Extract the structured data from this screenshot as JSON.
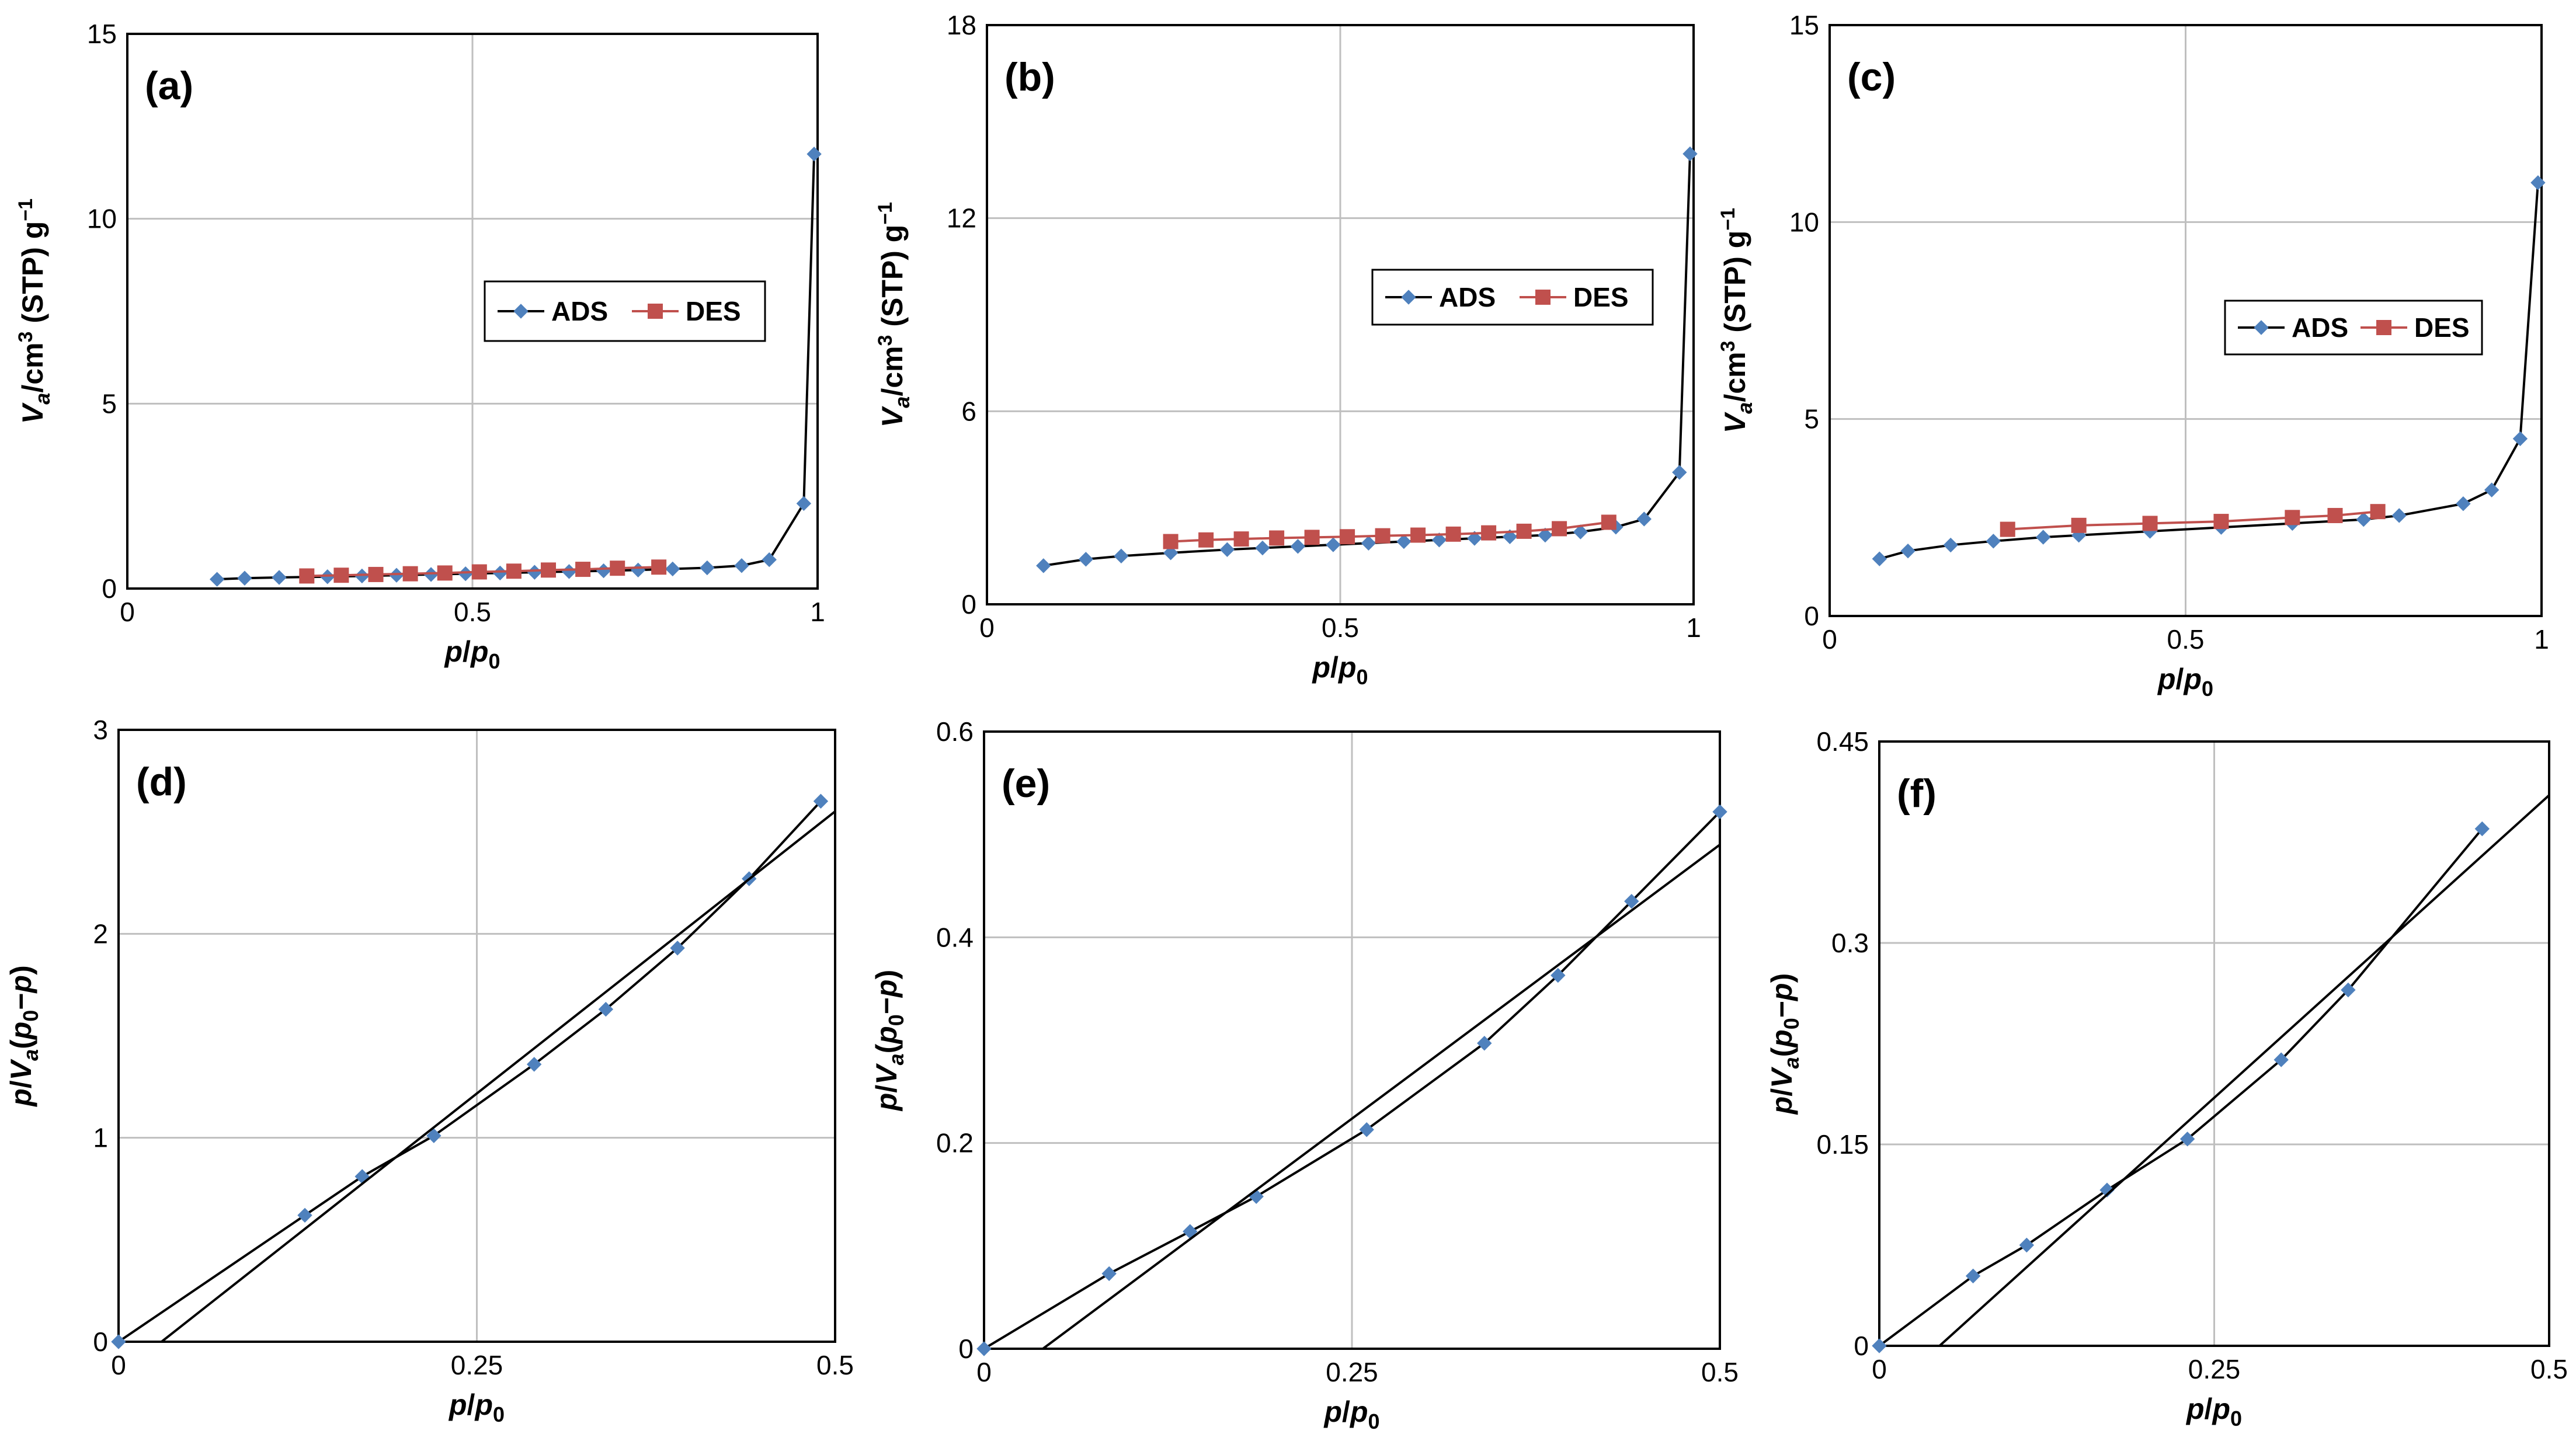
{
  "colors": {
    "ads_marker": "#4F81BD",
    "des_marker": "#C0504D",
    "ads_line": "#000000",
    "des_line": "#C0504D",
    "fit_line": "#000000",
    "grid": "#BFBFBF",
    "frame": "#000000"
  },
  "chart_data": [
    {
      "id": "a",
      "type": "line",
      "panel_label": "(a)",
      "xlabel": "p/p₀",
      "ylabel": "Vₐ/cm³ (STP) g⁻¹",
      "xlim": [
        0,
        1
      ],
      "ylim": [
        0,
        15
      ],
      "xticks": [
        0,
        0.5,
        1
      ],
      "xtick_labels": [
        "0",
        "0.5",
        "1"
      ],
      "yticks": [
        0,
        5,
        10,
        15
      ],
      "ytick_labels": [
        "0",
        "5",
        "10",
        "15"
      ],
      "legend": {
        "placement": "center-right",
        "entries": [
          "ADS",
          "DES"
        ]
      },
      "series": [
        {
          "name": "ADS",
          "x": [
            0.13,
            0.17,
            0.22,
            0.29,
            0.34,
            0.39,
            0.44,
            0.49,
            0.54,
            0.59,
            0.64,
            0.69,
            0.74,
            0.79,
            0.84,
            0.89,
            0.93,
            0.98,
            0.995
          ],
          "y": [
            0.25,
            0.28,
            0.3,
            0.32,
            0.34,
            0.36,
            0.38,
            0.4,
            0.42,
            0.44,
            0.46,
            0.48,
            0.5,
            0.53,
            0.56,
            0.62,
            0.78,
            2.3,
            11.75
          ]
        },
        {
          "name": "DES",
          "x": [
            0.26,
            0.31,
            0.36,
            0.41,
            0.46,
            0.51,
            0.56,
            0.61,
            0.66,
            0.71,
            0.77
          ],
          "y": [
            0.34,
            0.36,
            0.38,
            0.4,
            0.42,
            0.45,
            0.47,
            0.5,
            0.52,
            0.55,
            0.58
          ]
        }
      ]
    },
    {
      "id": "b",
      "type": "line",
      "panel_label": "(b)",
      "xlabel": "p/p₀",
      "ylabel": "Vₐ/cm³ (STP) g⁻¹",
      "xlim": [
        0,
        1
      ],
      "ylim": [
        0,
        18
      ],
      "xticks": [
        0,
        0.5,
        1
      ],
      "xtick_labels": [
        "0",
        "0.5",
        "1"
      ],
      "yticks": [
        0,
        6,
        12,
        18
      ],
      "ytick_labels": [
        "0",
        "6",
        "12",
        "18"
      ],
      "legend": {
        "placement": "center-right",
        "entries": [
          "ADS",
          "DES"
        ]
      },
      "series": [
        {
          "name": "ADS",
          "x": [
            0.08,
            0.14,
            0.19,
            0.26,
            0.34,
            0.39,
            0.44,
            0.49,
            0.54,
            0.59,
            0.64,
            0.69,
            0.74,
            0.79,
            0.84,
            0.89,
            0.93,
            0.98,
            0.995
          ],
          "y": [
            1.2,
            1.4,
            1.5,
            1.6,
            1.7,
            1.75,
            1.8,
            1.85,
            1.9,
            1.95,
            2.0,
            2.05,
            2.1,
            2.15,
            2.25,
            2.4,
            2.65,
            4.1,
            14.0
          ]
        },
        {
          "name": "DES",
          "x": [
            0.26,
            0.31,
            0.36,
            0.41,
            0.46,
            0.51,
            0.56,
            0.61,
            0.66,
            0.71,
            0.76,
            0.81,
            0.88
          ],
          "y": [
            1.95,
            2.0,
            2.03,
            2.06,
            2.08,
            2.1,
            2.13,
            2.15,
            2.18,
            2.22,
            2.27,
            2.35,
            2.55
          ]
        }
      ]
    },
    {
      "id": "c",
      "type": "line",
      "panel_label": "(c)",
      "xlabel": "p/p₀",
      "ylabel": "Vₐ/cm³ (STP) g⁻¹",
      "xlim": [
        0,
        1
      ],
      "ylim": [
        0,
        15
      ],
      "xticks": [
        0,
        0.5,
        1
      ],
      "xtick_labels": [
        "0",
        "0.5",
        "1"
      ],
      "yticks": [
        0,
        5,
        10,
        15
      ],
      "ytick_labels": [
        "0",
        "5",
        "10",
        "15"
      ],
      "legend": {
        "placement": "center-right",
        "entries": [
          "ADS",
          "DES"
        ]
      },
      "series": [
        {
          "name": "ADS",
          "x": [
            0.07,
            0.11,
            0.17,
            0.23,
            0.3,
            0.35,
            0.45,
            0.55,
            0.65,
            0.75,
            0.8,
            0.89,
            0.93,
            0.97,
            0.995
          ],
          "y": [
            1.45,
            1.65,
            1.8,
            1.9,
            2.0,
            2.05,
            2.15,
            2.25,
            2.35,
            2.45,
            2.55,
            2.85,
            3.2,
            4.5,
            11.0
          ]
        },
        {
          "name": "DES",
          "x": [
            0.25,
            0.35,
            0.45,
            0.55,
            0.65,
            0.71,
            0.77
          ],
          "y": [
            2.2,
            2.3,
            2.35,
            2.4,
            2.5,
            2.55,
            2.65
          ]
        }
      ]
    },
    {
      "id": "d",
      "type": "scatter",
      "panel_label": "(d)",
      "xlabel": "p/p₀",
      "ylabel": "p/Vₐ(p₀−p)",
      "xlim": [
        0,
        0.5
      ],
      "ylim": [
        0,
        3
      ],
      "xticks": [
        0,
        0.25,
        0.5
      ],
      "xtick_labels": [
        "0",
        "0.25",
        "0.5"
      ],
      "yticks": [
        0,
        1,
        2,
        3
      ],
      "ytick_labels": [
        "0",
        "1",
        "2",
        "3"
      ],
      "series": [
        {
          "name": "data",
          "connected": true,
          "x": [
            0,
            0.13,
            0.17,
            0.22,
            0.29,
            0.34,
            0.39,
            0.44,
            0.49
          ],
          "y": [
            0,
            0.62,
            0.81,
            1.01,
            1.36,
            1.63,
            1.93,
            2.27,
            2.65
          ]
        },
        {
          "name": "fit",
          "role": "fit",
          "x": [
            0.03,
            0.5
          ],
          "y": [
            0,
            2.6
          ]
        }
      ]
    },
    {
      "id": "e",
      "type": "scatter",
      "panel_label": "(e)",
      "xlabel": "p/p₀",
      "ylabel": "p/Vₐ(p₀−p)",
      "xlim": [
        0,
        0.5
      ],
      "ylim": [
        0,
        0.6
      ],
      "xticks": [
        0,
        0.25,
        0.5
      ],
      "xtick_labels": [
        "0",
        "0.25",
        "0.5"
      ],
      "yticks": [
        0,
        0.2,
        0.4,
        0.6
      ],
      "ytick_labels": [
        "0",
        "0.2",
        "0.4",
        "0.6"
      ],
      "series": [
        {
          "name": "data",
          "connected": true,
          "x": [
            0,
            0.085,
            0.14,
            0.185,
            0.26,
            0.34,
            0.39,
            0.44,
            0.5
          ],
          "y": [
            0,
            0.073,
            0.114,
            0.148,
            0.213,
            0.297,
            0.363,
            0.435,
            0.522
          ]
        },
        {
          "name": "fit",
          "role": "fit",
          "x": [
            0.04,
            0.5
          ],
          "y": [
            0,
            0.49
          ]
        }
      ]
    },
    {
      "id": "f",
      "type": "scatter",
      "panel_label": "(f)",
      "xlabel": "p/p₀",
      "ylabel": "p/Vₐ(p₀−p)",
      "xlim": [
        0,
        0.5
      ],
      "ylim": [
        0,
        0.45
      ],
      "xticks": [
        0,
        0.25,
        0.5
      ],
      "xtick_labels": [
        "0",
        "0.25",
        "0.5"
      ],
      "yticks": [
        0,
        0.15,
        0.3,
        0.45
      ],
      "ytick_labels": [
        "0",
        "0.15",
        "0.3",
        "0.45"
      ],
      "series": [
        {
          "name": "data",
          "connected": true,
          "x": [
            0,
            0.07,
            0.11,
            0.17,
            0.23,
            0.3,
            0.35,
            0.45
          ],
          "y": [
            0,
            0.052,
            0.075,
            0.116,
            0.154,
            0.213,
            0.265,
            0.385
          ]
        },
        {
          "name": "fit",
          "role": "fit",
          "x": [
            0.045,
            0.5
          ],
          "y": [
            0,
            0.41
          ]
        }
      ]
    }
  ]
}
